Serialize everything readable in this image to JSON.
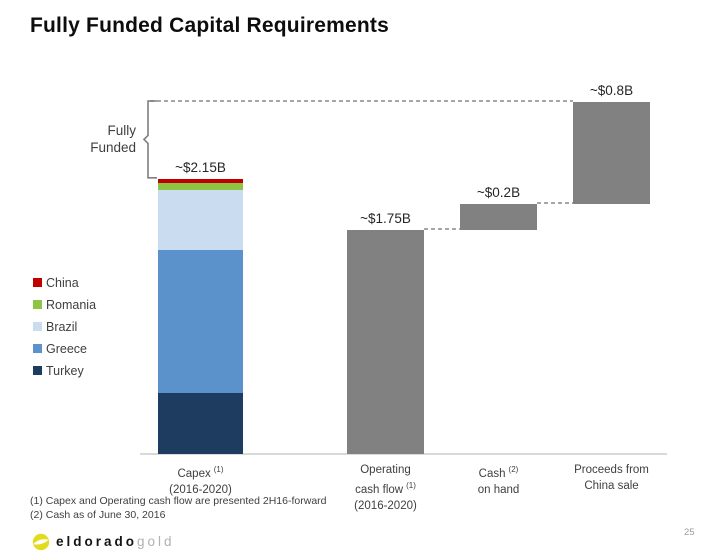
{
  "slide": {
    "title": "Fully Funded Capital Requirements",
    "page_number": "25",
    "footnotes": [
      "(1) Capex and Operating cash flow are presented 2H16-forward",
      "(2) Cash as of June 30, 2016"
    ],
    "footer_brand": {
      "primary": "eldorado",
      "secondary": "gold"
    }
  },
  "annotation": {
    "line1": "Fully",
    "line2": "Funded"
  },
  "colors": {
    "china_red": "#c00000",
    "romania_green": "#8cc544",
    "brazil_light_blue": "#caddf0",
    "greece_blue": "#5b92cc",
    "turkey_navy": "#1e3c60",
    "waterfall_gray": "#818181",
    "dashed_line": "#a6a6a6",
    "axis_line": "#d9d9d9",
    "logo_yellow": "#e3db1d"
  },
  "chart_data": {
    "type": "bar",
    "subtype": "stacked-bar-plus-waterfall",
    "title": "Fully Funded Capital Requirements",
    "unit": "USD billions",
    "xlabel": "",
    "ylabel": "",
    "grid": false,
    "legend_position": "left",
    "capex_total": 2.15,
    "sources_total": 2.75,
    "bars": [
      {
        "name": "Capex (2016-2020)",
        "value_label": "~$2.15B",
        "total": 2.15,
        "base": 0,
        "label_lines": [
          {
            "text": "Capex",
            "sup": "(1)"
          },
          {
            "text": "(2016-2020)"
          }
        ],
        "segments": [
          {
            "name": "Turkey",
            "value": 0.48,
            "color": "#1e3c60"
          },
          {
            "name": "Greece",
            "value": 1.11,
            "color": "#5b92cc"
          },
          {
            "name": "Brazil",
            "value": 0.47,
            "color": "#caddf0"
          },
          {
            "name": "Romania",
            "value": 0.06,
            "color": "#8cc544"
          },
          {
            "name": "China",
            "value": 0.03,
            "color": "#c00000"
          }
        ]
      },
      {
        "name": "Operating cash flow (2016-2020)",
        "value_label": "~$1.75B",
        "total": 1.75,
        "base": 0,
        "color": "#818181",
        "label_lines": [
          {
            "text": "Operating"
          },
          {
            "text": "cash flow",
            "sup": "(1)"
          },
          {
            "text": "(2016-2020)"
          }
        ]
      },
      {
        "name": "Cash on hand",
        "value_label": "~$0.2B",
        "total": 0.2,
        "base": 1.75,
        "color": "#818181",
        "label_lines": [
          {
            "text": "Cash",
            "sup": "(2)"
          },
          {
            "text": "on hand"
          }
        ]
      },
      {
        "name": "Proceeds from China sale",
        "value_label": "~$0.8B",
        "total": 0.8,
        "base": 1.95,
        "color": "#818181",
        "label_lines": [
          {
            "text": "Proceeds from"
          },
          {
            "text": "China sale"
          }
        ]
      }
    ],
    "legend": [
      {
        "label": "China",
        "color": "#c00000"
      },
      {
        "label": "Romania",
        "color": "#8cc544"
      },
      {
        "label": "Brazil",
        "color": "#caddf0"
      },
      {
        "label": "Greece",
        "color": "#5b92cc"
      },
      {
        "label": "Turkey",
        "color": "#1e3c60"
      }
    ]
  }
}
